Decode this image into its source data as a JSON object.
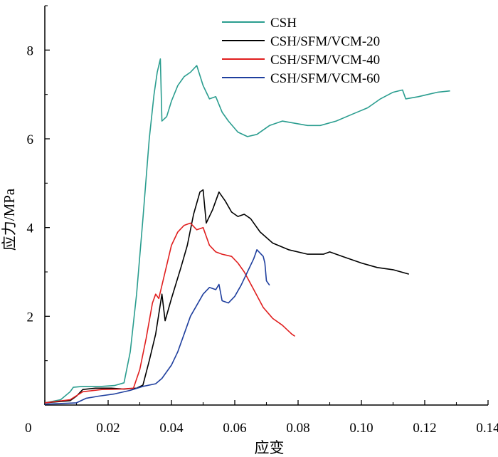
{
  "chart_data": {
    "type": "line",
    "xlabel": "应变",
    "ylabel": "应力/MPa",
    "xlim": [
      0,
      0.14
    ],
    "ylim": [
      0,
      9
    ],
    "x_ticks": [
      0,
      0.02,
      0.04,
      0.06,
      0.08,
      0.1,
      0.12,
      0.14
    ],
    "x_tick_labels": [
      "0",
      "0.02",
      "0.04",
      "0.06",
      "0.08",
      "0.10",
      "0.12",
      "0.14"
    ],
    "y_ticks": [
      2,
      4,
      6,
      8
    ],
    "y_tick_labels": [
      "2",
      "4",
      "6",
      "8"
    ],
    "grid": false,
    "legend_position": "top-right",
    "series": [
      {
        "name": "CSH",
        "color": "#2a9d8f",
        "points": [
          [
            0,
            0.05
          ],
          [
            0.005,
            0.12
          ],
          [
            0.008,
            0.3
          ],
          [
            0.009,
            0.4
          ],
          [
            0.012,
            0.42
          ],
          [
            0.018,
            0.42
          ],
          [
            0.022,
            0.44
          ],
          [
            0.025,
            0.5
          ],
          [
            0.027,
            1.2
          ],
          [
            0.029,
            2.5
          ],
          [
            0.031,
            4.2
          ],
          [
            0.033,
            6.0
          ],
          [
            0.0345,
            7.0
          ],
          [
            0.0355,
            7.5
          ],
          [
            0.0365,
            7.8
          ],
          [
            0.037,
            6.4
          ],
          [
            0.0385,
            6.5
          ],
          [
            0.04,
            6.85
          ],
          [
            0.042,
            7.2
          ],
          [
            0.044,
            7.4
          ],
          [
            0.046,
            7.5
          ],
          [
            0.048,
            7.65
          ],
          [
            0.05,
            7.2
          ],
          [
            0.052,
            6.9
          ],
          [
            0.054,
            6.95
          ],
          [
            0.056,
            6.6
          ],
          [
            0.058,
            6.4
          ],
          [
            0.061,
            6.15
          ],
          [
            0.064,
            6.05
          ],
          [
            0.067,
            6.1
          ],
          [
            0.071,
            6.3
          ],
          [
            0.075,
            6.4
          ],
          [
            0.079,
            6.35
          ],
          [
            0.083,
            6.3
          ],
          [
            0.087,
            6.3
          ],
          [
            0.092,
            6.4
          ],
          [
            0.097,
            6.55
          ],
          [
            0.102,
            6.7
          ],
          [
            0.106,
            6.9
          ],
          [
            0.11,
            7.05
          ],
          [
            0.113,
            7.1
          ],
          [
            0.114,
            6.9
          ],
          [
            0.118,
            6.95
          ],
          [
            0.121,
            7.0
          ],
          [
            0.124,
            7.05
          ],
          [
            0.128,
            7.08
          ]
        ]
      },
      {
        "name": "CSH/SFM/VCM-20",
        "color": "#000000",
        "points": [
          [
            0,
            0.05
          ],
          [
            0.008,
            0.1
          ],
          [
            0.01,
            0.2
          ],
          [
            0.012,
            0.35
          ],
          [
            0.016,
            0.38
          ],
          [
            0.021,
            0.38
          ],
          [
            0.025,
            0.36
          ],
          [
            0.029,
            0.38
          ],
          [
            0.031,
            0.45
          ],
          [
            0.033,
            1.0
          ],
          [
            0.035,
            1.6
          ],
          [
            0.037,
            2.5
          ],
          [
            0.038,
            1.9
          ],
          [
            0.04,
            2.4
          ],
          [
            0.043,
            3.1
          ],
          [
            0.045,
            3.6
          ],
          [
            0.047,
            4.3
          ],
          [
            0.049,
            4.8
          ],
          [
            0.05,
            4.85
          ],
          [
            0.051,
            4.1
          ],
          [
            0.053,
            4.4
          ],
          [
            0.055,
            4.8
          ],
          [
            0.057,
            4.6
          ],
          [
            0.059,
            4.35
          ],
          [
            0.061,
            4.25
          ],
          [
            0.063,
            4.3
          ],
          [
            0.065,
            4.2
          ],
          [
            0.068,
            3.9
          ],
          [
            0.072,
            3.65
          ],
          [
            0.077,
            3.5
          ],
          [
            0.083,
            3.4
          ],
          [
            0.088,
            3.4
          ],
          [
            0.09,
            3.45
          ],
          [
            0.094,
            3.35
          ],
          [
            0.1,
            3.2
          ],
          [
            0.105,
            3.1
          ],
          [
            0.11,
            3.05
          ],
          [
            0.115,
            2.95
          ]
        ]
      },
      {
        "name": "CSH/SFM/VCM-40",
        "color": "#e01e1e",
        "points": [
          [
            0,
            0.05
          ],
          [
            0.008,
            0.12
          ],
          [
            0.012,
            0.3
          ],
          [
            0.018,
            0.35
          ],
          [
            0.024,
            0.36
          ],
          [
            0.028,
            0.38
          ],
          [
            0.03,
            0.8
          ],
          [
            0.032,
            1.5
          ],
          [
            0.034,
            2.3
          ],
          [
            0.035,
            2.5
          ],
          [
            0.036,
            2.4
          ],
          [
            0.038,
            3.0
          ],
          [
            0.04,
            3.6
          ],
          [
            0.042,
            3.9
          ],
          [
            0.044,
            4.05
          ],
          [
            0.046,
            4.1
          ],
          [
            0.048,
            3.95
          ],
          [
            0.05,
            4.0
          ],
          [
            0.052,
            3.6
          ],
          [
            0.054,
            3.45
          ],
          [
            0.056,
            3.4
          ],
          [
            0.059,
            3.35
          ],
          [
            0.061,
            3.2
          ],
          [
            0.063,
            3.0
          ],
          [
            0.066,
            2.6
          ],
          [
            0.069,
            2.2
          ],
          [
            0.072,
            1.95
          ],
          [
            0.075,
            1.8
          ],
          [
            0.078,
            1.6
          ],
          [
            0.079,
            1.55
          ]
        ]
      },
      {
        "name": "CSH/SFM/VCM-60",
        "color": "#1f3f9e",
        "points": [
          [
            0,
            0.02
          ],
          [
            0.01,
            0.05
          ],
          [
            0.013,
            0.15
          ],
          [
            0.017,
            0.2
          ],
          [
            0.022,
            0.25
          ],
          [
            0.027,
            0.33
          ],
          [
            0.031,
            0.42
          ],
          [
            0.035,
            0.48
          ],
          [
            0.037,
            0.6
          ],
          [
            0.04,
            0.9
          ],
          [
            0.042,
            1.2
          ],
          [
            0.044,
            1.6
          ],
          [
            0.046,
            2.0
          ],
          [
            0.048,
            2.25
          ],
          [
            0.05,
            2.5
          ],
          [
            0.052,
            2.65
          ],
          [
            0.054,
            2.6
          ],
          [
            0.055,
            2.72
          ],
          [
            0.056,
            2.35
          ],
          [
            0.058,
            2.3
          ],
          [
            0.06,
            2.45
          ],
          [
            0.062,
            2.7
          ],
          [
            0.064,
            3.0
          ],
          [
            0.066,
            3.3
          ],
          [
            0.067,
            3.5
          ],
          [
            0.069,
            3.35
          ],
          [
            0.0695,
            3.2
          ],
          [
            0.07,
            2.8
          ],
          [
            0.071,
            2.7
          ]
        ]
      }
    ]
  }
}
